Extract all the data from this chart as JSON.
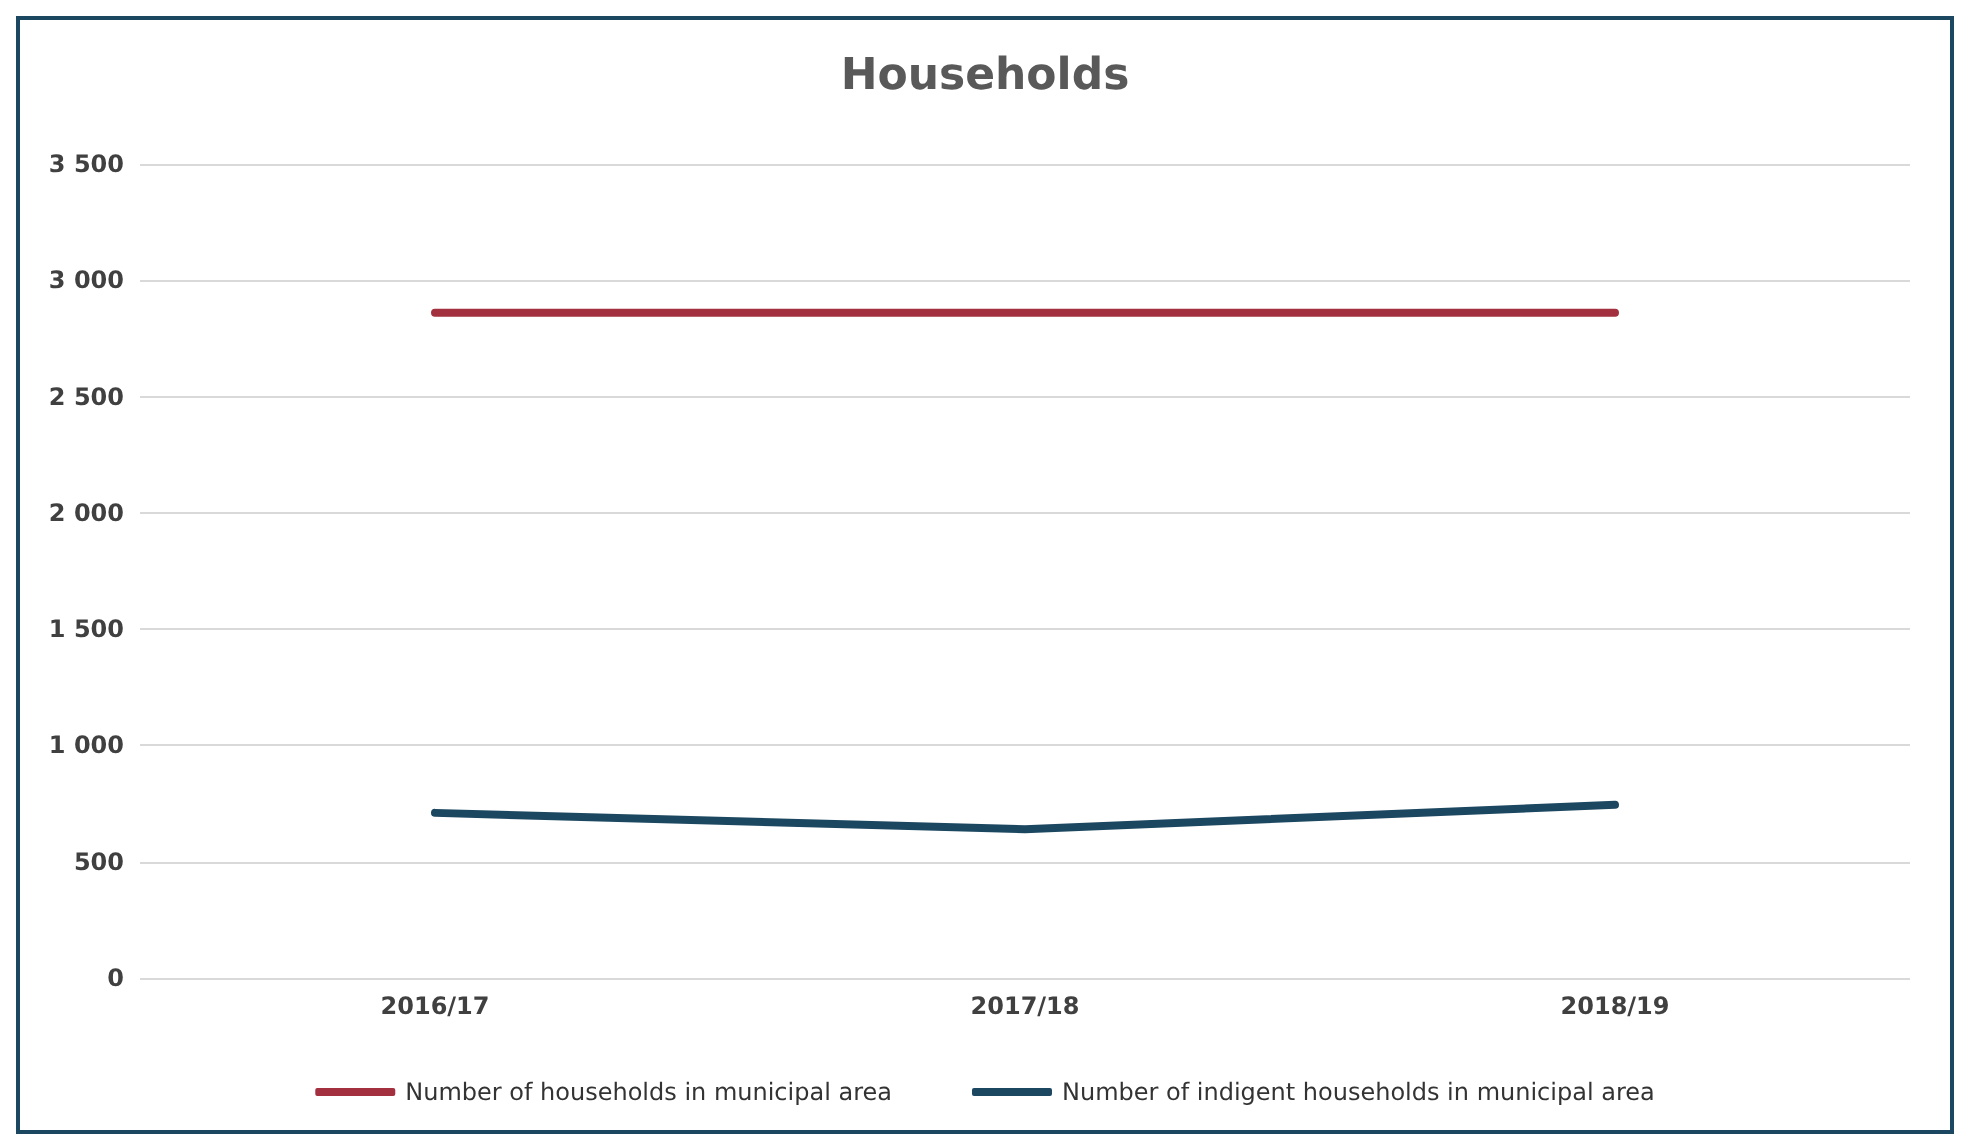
{
  "chart_data": {
    "type": "line",
    "title": "Households",
    "categories": [
      "2016/17",
      "2017/18",
      "2018/19"
    ],
    "series": [
      {
        "name": "Number of households in municipal area",
        "color": "#a3303e",
        "values": [
          2860,
          2860,
          2860
        ]
      },
      {
        "name": "Number of indigent households in municipal area",
        "color": "#1c4760",
        "values": [
          710,
          640,
          745
        ]
      }
    ],
    "ylim": [
      0,
      3500
    ],
    "yticks": [
      0,
      500,
      {
        "value": 1000,
        "label": "1 000"
      },
      {
        "value": 1500,
        "label": "1 500"
      },
      {
        "value": 2000,
        "label": "2 000"
      },
      {
        "value": 2500,
        "label": "2 500"
      },
      {
        "value": 3000,
        "label": "3 000"
      },
      {
        "value": 3500,
        "label": "3 500"
      }
    ],
    "grid": "y",
    "legend": "bottom",
    "marker": "none",
    "line_style": "solid"
  }
}
